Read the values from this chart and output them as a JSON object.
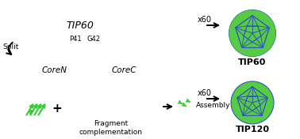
{
  "bg_color": "#ffffff",
  "tip60_box_green": "#c8e6a0",
  "tip60_box_blue": "#c8d8f0",
  "coreN_box_color": "#c8e6a0",
  "coreC_box_green": "#c8e6a0",
  "coreC_box_pink": "#f0b8f0",
  "coreC_box_blue": "#c8d8f0",
  "split_text": "Split",
  "p41_text": "P41",
  "g42_text": "G42",
  "tip60_label": "TIP60",
  "coreN_label": "CoreN",
  "coreC_label": "CoreC",
  "x60_label": "x60",
  "tip60_title": "TIP60",
  "tip120_title": "TIP120",
  "fragment_text": "Fragment\ncomplementation",
  "assembly_text": "Assembly",
  "green_color": "#33cc33",
  "magenta_color": "#ee00cc",
  "blue_color": "#5588cc",
  "ico_green": "#55cc44",
  "ico_blue": "#3355bb",
  "line_color": "#000000"
}
